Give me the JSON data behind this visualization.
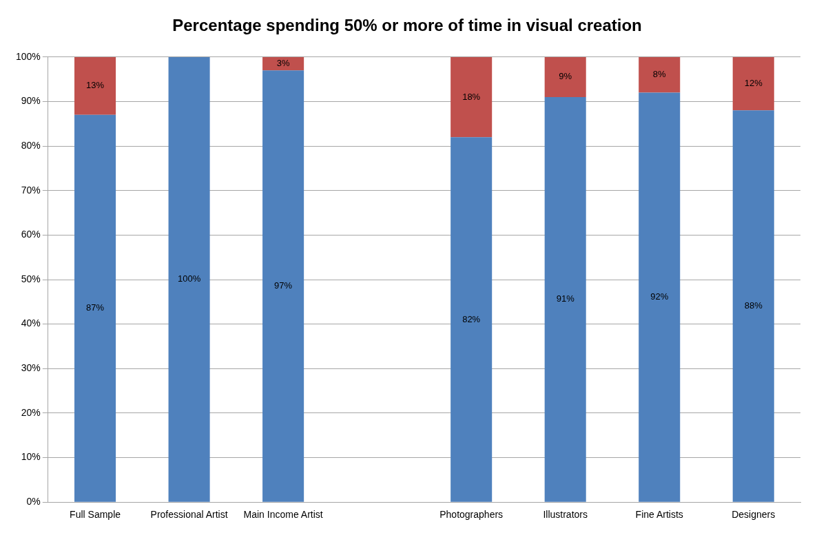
{
  "chart_data": {
    "type": "bar",
    "title": "Percentage spending 50% or more of time in visual creation",
    "categories": [
      "Full Sample",
      "Professional Artist",
      "Main Income Artist",
      null,
      "Photographers",
      "Illustrators",
      "Fine Artists",
      "Designers"
    ],
    "series": [
      {
        "color": "#4f81bd",
        "values": [
          87,
          100,
          97,
          null,
          82,
          91,
          92,
          88
        ],
        "value_labels": [
          "87%",
          "100%",
          "97%",
          null,
          "82%",
          "91%",
          "92%",
          "88%"
        ]
      },
      {
        "color": "#c0504d",
        "values": [
          13,
          null,
          3,
          null,
          18,
          9,
          8,
          12
        ],
        "value_labels": [
          "13%",
          null,
          "3%",
          null,
          "18%",
          "9%",
          "8%",
          "12%"
        ]
      }
    ],
    "stacked": true,
    "grid": "y",
    "legend": false,
    "ylim": [
      0,
      100
    ],
    "yticks": [
      {
        "value": 0,
        "label": "0%"
      },
      {
        "value": 10,
        "label": "10%"
      },
      {
        "value": 20,
        "label": "20%"
      },
      {
        "value": 30,
        "label": "30%"
      },
      {
        "value": 40,
        "label": "40%"
      },
      {
        "value": 50,
        "label": "50%"
      },
      {
        "value": 60,
        "label": "60%"
      },
      {
        "value": 70,
        "label": "70%"
      },
      {
        "value": 80,
        "label": "80%"
      },
      {
        "value": 90,
        "label": "90%"
      },
      {
        "value": 100,
        "label": "100%"
      }
    ]
  }
}
